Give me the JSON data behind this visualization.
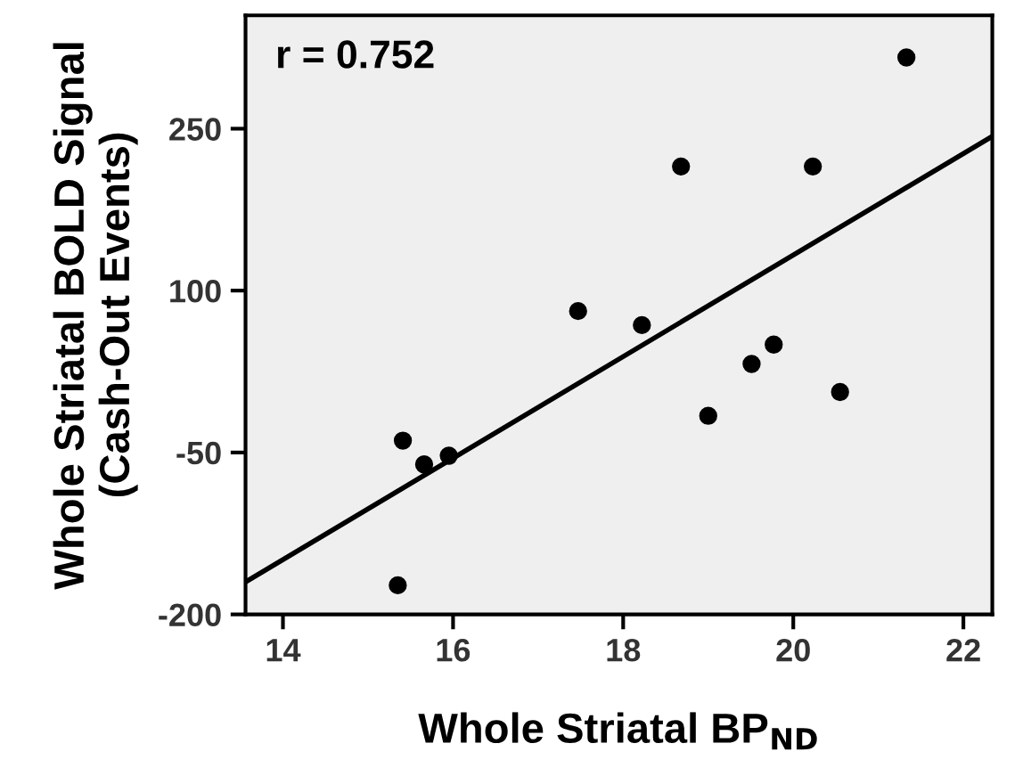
{
  "chart_data": {
    "type": "scatter",
    "xlabel": "Whole Striatal BP$_{ND}$",
    "ylabel": "Whole Striatal BOLD Signal\n(Cash-Out Events)",
    "annotations": [
      "r = 0.752"
    ],
    "xlim": [
      13.56,
      22.34
    ],
    "xticks": [
      14,
      16,
      18,
      20,
      22
    ],
    "ylim": [
      -200,
      355
    ],
    "yticks": [
      -200,
      -50,
      100,
      250
    ],
    "grid": false,
    "legend": false,
    "series": [
      {
        "marker": "circle",
        "color": "#000000",
        "x": [
          21.33,
          18.68,
          20.23,
          17.47,
          18.22,
          19.77,
          19.51,
          20.55,
          19.0,
          15.41,
          15.66,
          15.95,
          15.35
        ],
        "values": [
          316,
          215,
          215,
          81,
          68,
          50,
          32,
          6,
          -16,
          -39,
          -61,
          -53,
          -173
        ]
      },
      {
        "type": "line",
        "color": "#000000",
        "line_style": "solid",
        "x": [
          13.56,
          22.34
        ],
        "values": [
          -170,
          243
        ]
      }
    ]
  }
}
